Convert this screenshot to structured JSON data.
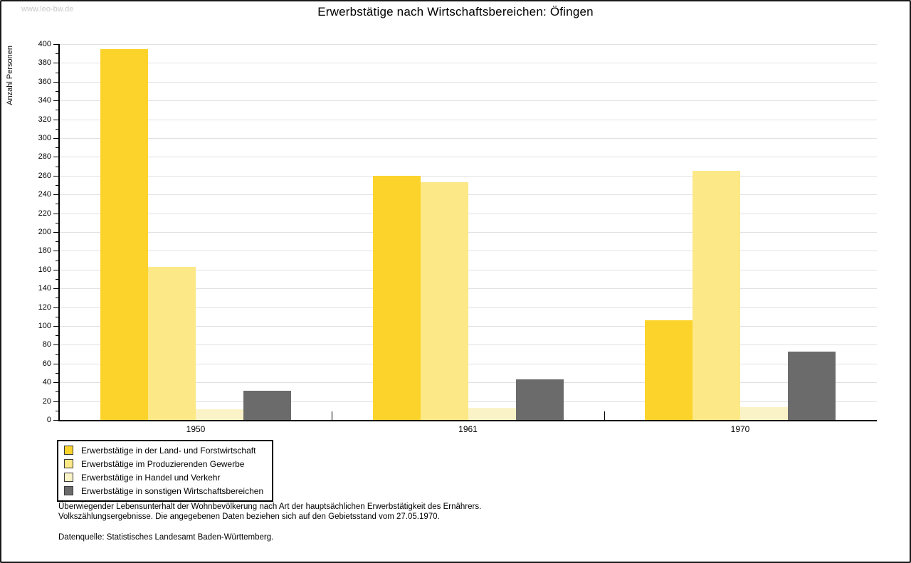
{
  "watermark": "www.leo-bw.de",
  "chart_data": {
    "type": "bar",
    "title": "Erwerbstätige nach Wirtschaftsbereichen: Öfingen",
    "ylabel": "Anzahl Personen",
    "xlabel": "",
    "ylim": [
      0,
      400
    ],
    "ytick_step": 20,
    "yminor_step": 10,
    "grid": true,
    "legend_position": "bottom-left",
    "categories": [
      "1950",
      "1961",
      "1970"
    ],
    "series": [
      {
        "name": "Erwerbstätige in der Land- und Forstwirtschaft",
        "color": "#fcd32b",
        "values": [
          395,
          260,
          106
        ]
      },
      {
        "name": "Erwerbstätige im Produzierenden Gewerbe",
        "color": "#fce886",
        "values": [
          163,
          253,
          265
        ]
      },
      {
        "name": "Erwerbstätige in Handel und Verkehr",
        "color": "#fbf3c8",
        "values": [
          11,
          13,
          14
        ]
      },
      {
        "name": "Erwerbstätige in sonstigen Wirtschaftsbereichen",
        "color": "#6b6b6b",
        "values": [
          31,
          43,
          73
        ]
      }
    ]
  },
  "footnotes": {
    "line1": "Überwiegender Lebensunterhalt der Wohnbevölkerung nach Art der hauptsächlichen Erwerbstätigkeit des Ernährers.",
    "line2": "Volkszählungsergebnisse. Die angegebenen Daten beziehen sich auf den Gebietsstand vom 27.05.1970.",
    "source": "Datenquelle: Statistisches Landesamt Baden-Württemberg."
  }
}
